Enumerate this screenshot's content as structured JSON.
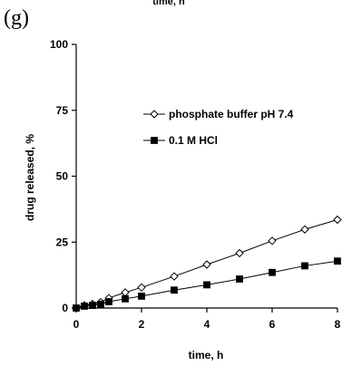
{
  "panel_label": "(g)",
  "top_cut_text": "time, h",
  "chart_data": {
    "type": "line",
    "xlabel": "time, h",
    "ylabel": "drug released, %",
    "xlim": [
      0,
      8
    ],
    "ylim": [
      0,
      100
    ],
    "x_ticks": [
      0,
      2,
      4,
      6,
      8
    ],
    "y_ticks": [
      0,
      25,
      50,
      75,
      100
    ],
    "grid": false,
    "legend_position": "top-right",
    "series": [
      {
        "name": "phosphate buffer pH 7.4",
        "marker": "open-diamond",
        "color": "#000000",
        "x": [
          0,
          0.25,
          0.5,
          0.75,
          1,
          1.5,
          2,
          3,
          4,
          5,
          6,
          7,
          8
        ],
        "y": [
          0,
          1.0,
          1.5,
          2.2,
          3.8,
          5.9,
          7.8,
          12.0,
          16.5,
          20.8,
          25.5,
          29.8,
          33.5
        ]
      },
      {
        "name": "0.1 M HCl",
        "marker": "filled-square",
        "color": "#000000",
        "x": [
          0,
          0.25,
          0.5,
          0.75,
          1,
          1.5,
          2,
          3,
          4,
          5,
          6,
          7,
          8
        ],
        "y": [
          0,
          0.7,
          1.0,
          1.4,
          2.4,
          3.5,
          4.5,
          6.8,
          8.8,
          11.0,
          13.5,
          16.0,
          17.8
        ]
      }
    ]
  }
}
